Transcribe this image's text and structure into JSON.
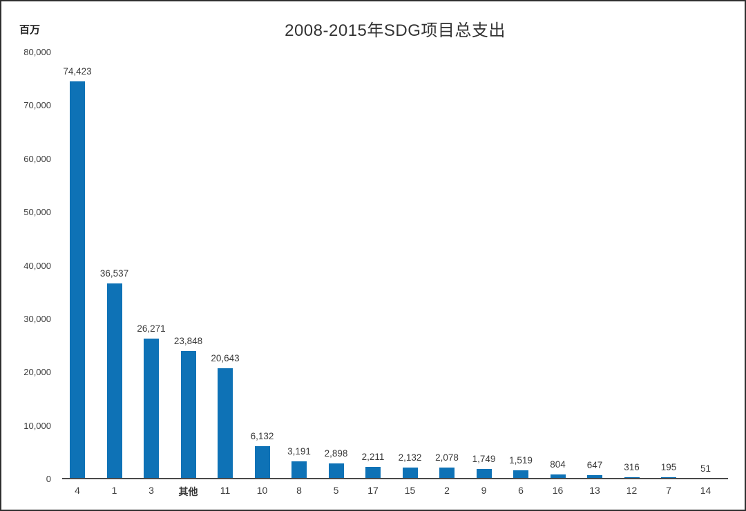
{
  "chart_data": {
    "type": "bar",
    "title": "2008-2015年SDG项目总支出",
    "ylabel": "百万",
    "xlabel": "",
    "categories": [
      "4",
      "1",
      "3",
      "其他",
      "11",
      "10",
      "8",
      "5",
      "17",
      "15",
      "2",
      "9",
      "6",
      "16",
      "13",
      "12",
      "7",
      "14"
    ],
    "values": [
      74423,
      36537,
      26271,
      23848,
      20643,
      6132,
      3191,
      2898,
      2211,
      2132,
      2078,
      1749,
      1519,
      804,
      647,
      316,
      195,
      51
    ],
    "data_labels": [
      "74,423",
      "36,537",
      "26,271",
      "23,848",
      "20,643",
      "6,132",
      "3,191",
      "2,898",
      "2,211",
      "2,132",
      "2,078",
      "1,749",
      "1,519",
      "804",
      "647",
      "316",
      "195",
      "51"
    ],
    "y_tick_values": [
      0,
      10000,
      20000,
      30000,
      40000,
      50000,
      60000,
      70000,
      80000
    ],
    "y_tick_labels": [
      "0",
      "10,000",
      "20,000",
      "30,000",
      "40,000",
      "50,000",
      "60,000",
      "70,000",
      "80,000"
    ],
    "ylim": [
      0,
      80000
    ],
    "grid": false,
    "legend": false,
    "emphasized_category": "其他",
    "bar_color": "#0E72B6",
    "axis_color": "#4A4A4A",
    "text_color": "#3A3A3A",
    "frame_color": "#2F2F2F"
  }
}
